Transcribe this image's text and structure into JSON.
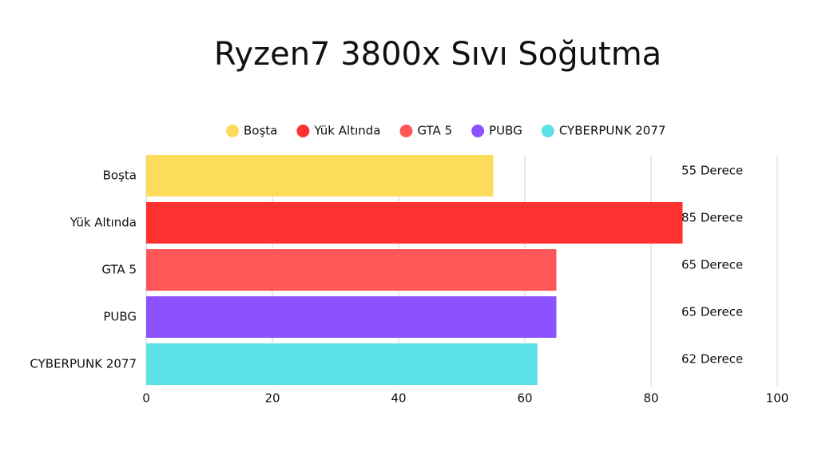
{
  "chart_data": {
    "type": "bar",
    "orientation": "horizontal",
    "title": "Ryzen7 3800x Sıvı Soğutma",
    "categories": [
      "Boşta",
      "Yük Altında",
      "GTA 5",
      "PUBG",
      "CYBERPUNK 2077"
    ],
    "values": [
      55,
      85,
      65,
      65,
      62
    ],
    "value_labels": [
      "55 Derece",
      "85 Derece",
      "65 Derece",
      "65 Derece",
      "62 Derece"
    ],
    "colors": [
      "#fddc5c",
      "#ff3131",
      "#ff5757",
      "#8c52ff",
      "#5ce1e6"
    ],
    "xlim": [
      0,
      100
    ],
    "xticks": [
      0,
      20,
      40,
      60,
      80,
      100
    ],
    "grid": true,
    "legend": "top"
  }
}
